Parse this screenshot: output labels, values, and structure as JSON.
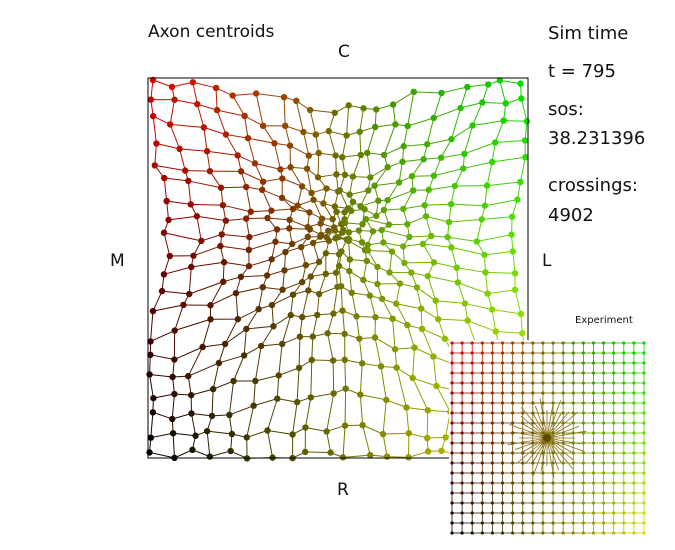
{
  "plot": {
    "title": "Axon centroids",
    "axes": {
      "top": "C",
      "left": "M",
      "right": "L",
      "bottom": "R"
    }
  },
  "sim": {
    "title": "Sim time",
    "t_label": "t = ",
    "t_value": "795",
    "sos_label": "sos:",
    "sos_value": "38.231396",
    "crossings_label": "crossings:",
    "crossings_value": "4902"
  },
  "experiment": {
    "label": "Experiment",
    "grid_size": 20
  },
  "colors": {
    "frame": "#000000",
    "top_left": "#000000",
    "top_right": "#dddd00",
    "bottom_left": "#dd0000",
    "bottom_right": "#00dd00"
  }
}
